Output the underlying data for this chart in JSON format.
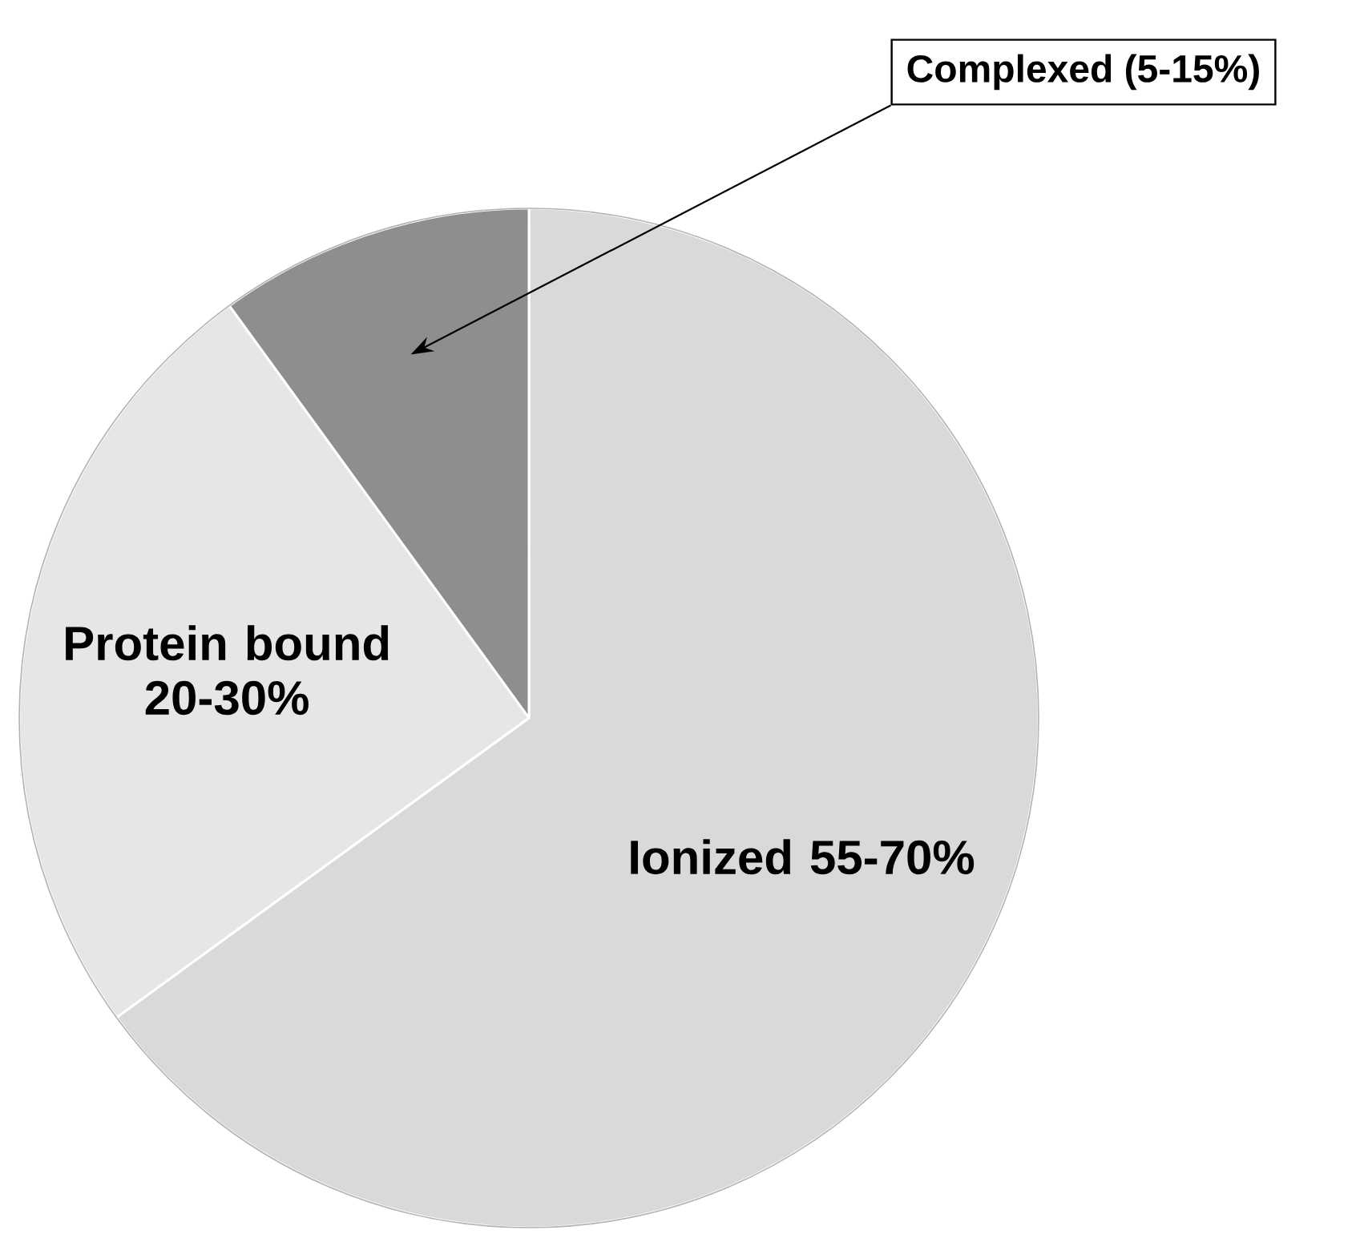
{
  "chart_data": {
    "type": "pie",
    "categories": [
      "Ionized 55-70%",
      "Protein bound 20-30%",
      "Complexed (5-15%)"
    ],
    "values": [
      65,
      25,
      10
    ],
    "colors": [
      "#d9d9d9",
      "#e6e6e6",
      "#8e8e8e"
    ]
  }
}
